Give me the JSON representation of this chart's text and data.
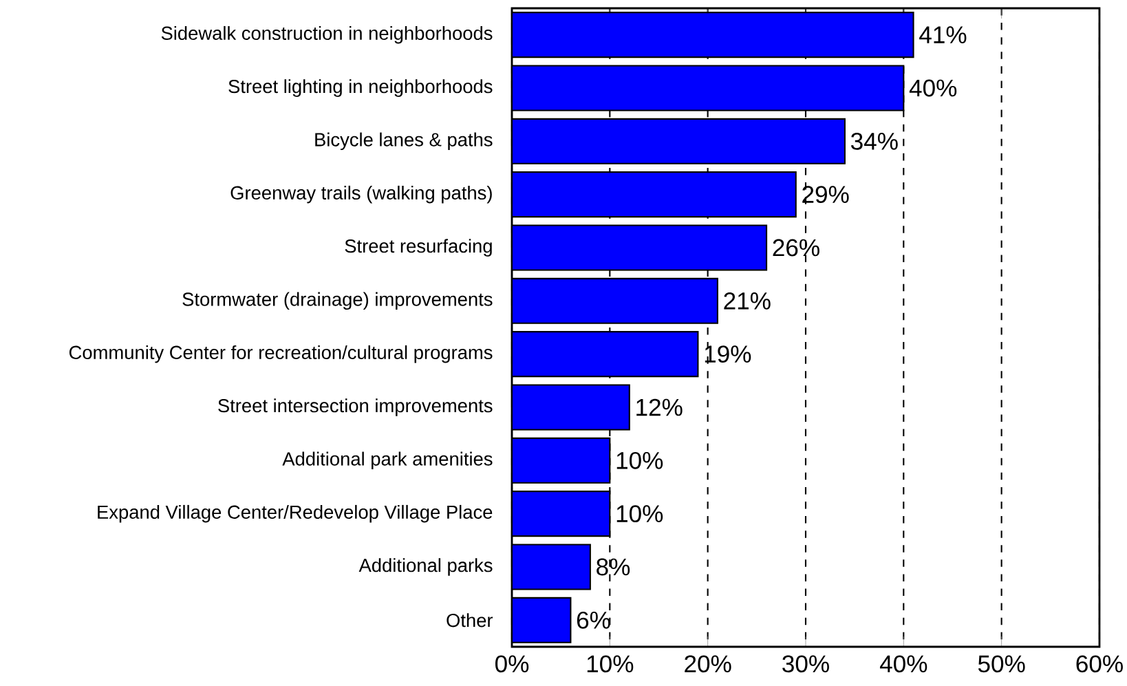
{
  "chart_data": {
    "type": "bar",
    "orientation": "horizontal",
    "categories": [
      "Sidewalk construction in neighborhoods",
      "Street lighting in neighborhoods",
      "Bicycle lanes & paths",
      "Greenway trails (walking paths)",
      "Street resurfacing",
      "Stormwater (drainage) improvements",
      "Community Center for recreation/cultural programs",
      "Street intersection improvements",
      "Additional park amenities",
      "Expand Village Center/Redevelop Village Place",
      "Additional parks",
      "Other"
    ],
    "values": [
      41,
      40,
      34,
      29,
      26,
      21,
      19,
      12,
      10,
      10,
      8,
      6
    ],
    "value_labels": [
      "41%",
      "40%",
      "34%",
      "29%",
      "26%",
      "21%",
      "19%",
      "12%",
      "10%",
      "10%",
      "8%",
      "6%"
    ],
    "color": "#0000ff",
    "xlim": [
      0,
      60
    ],
    "xticks": [
      {
        "value": 0,
        "label": "0%"
      },
      {
        "value": 10,
        "label": "10%"
      },
      {
        "value": 20,
        "label": "20%"
      },
      {
        "value": 30,
        "label": "30%"
      },
      {
        "value": 40,
        "label": "40%"
      },
      {
        "value": 50,
        "label": "50%"
      },
      {
        "value": 60,
        "label": "60%"
      }
    ],
    "grid": "x"
  }
}
